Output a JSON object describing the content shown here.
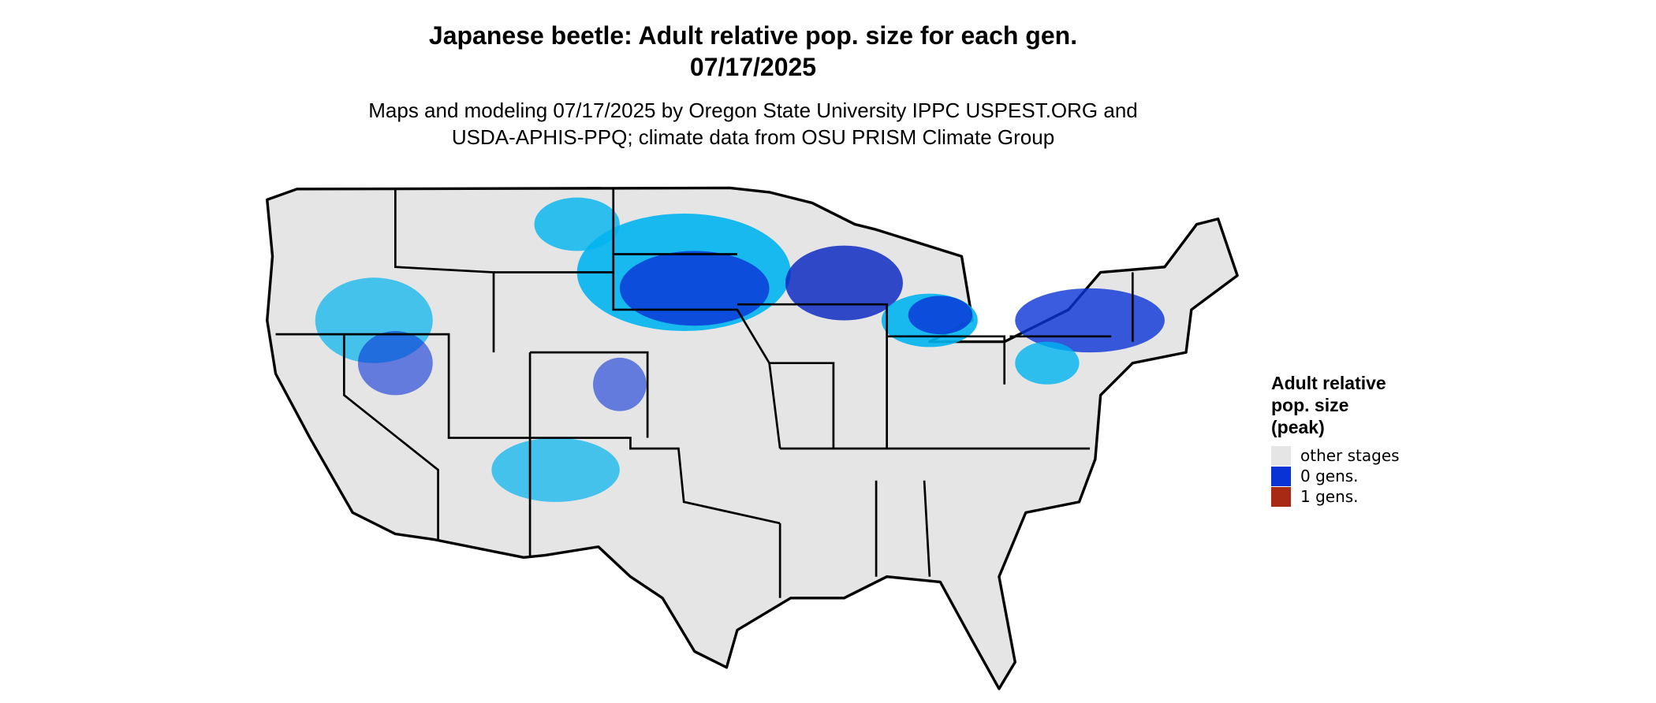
{
  "header": {
    "title_lines": [
      "Japanese beetle: Adult relative pop. size for each gen.",
      "07/17/2025"
    ],
    "subtitle_lines": [
      "Maps and modeling 07/17/2025 by Oregon State University IPPC USPEST.ORG and",
      "USDA-APHIS-PPQ; climate data from OSU PRISM Climate Group"
    ]
  },
  "legend": {
    "title_lines": [
      "Adult relative",
      "pop. size",
      "(peak)"
    ],
    "items": [
      {
        "label": "other stages",
        "color": "#e5e5e5"
      },
      {
        "label": "0 gens.",
        "color": "#0a33d6"
      },
      {
        "label": "1 gens.",
        "color": "#a82a14"
      }
    ]
  }
}
